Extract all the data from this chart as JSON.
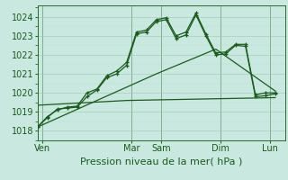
{
  "bg_color": "#c8e8e0",
  "grid_color_major": "#a0c8b8",
  "grid_color_minor": "#b8dcd0",
  "line_color": "#1a5c1a",
  "xlabel": "Pression niveau de la mer( hPa )",
  "xlabel_fontsize": 8,
  "tick_label_color": "#1a5c1a",
  "ylim": [
    1017.5,
    1024.6
  ],
  "yticks": [
    1018,
    1019,
    1020,
    1021,
    1022,
    1023,
    1024
  ],
  "x_day_labels": [
    "Ven",
    "Mar",
    "Sam",
    "Dim",
    "Lun"
  ],
  "x_day_positions": [
    0.5,
    9.5,
    12.5,
    18.5,
    23.5
  ],
  "x_vlines": [
    0.5,
    9.5,
    12.5,
    18.5,
    23.5
  ],
  "xlim": [
    0,
    25
  ],
  "series1_x": [
    0,
    1,
    2,
    3,
    4,
    5,
    6,
    7,
    8,
    9,
    10,
    11,
    12,
    13,
    14,
    15,
    16,
    17,
    18,
    19,
    20,
    21,
    22,
    23,
    24
  ],
  "series1_y": [
    1018.2,
    1018.7,
    1019.15,
    1019.2,
    1019.25,
    1019.8,
    1020.15,
    1020.8,
    1021.0,
    1021.45,
    1023.1,
    1023.2,
    1023.75,
    1023.85,
    1022.85,
    1023.05,
    1024.1,
    1023.0,
    1022.0,
    1022.05,
    1022.5,
    1022.45,
    1019.8,
    1019.85,
    1019.95
  ],
  "series2_x": [
    0,
    1,
    2,
    3,
    4,
    5,
    6,
    7,
    8,
    9,
    10,
    11,
    12,
    13,
    14,
    15,
    16,
    17,
    18,
    19,
    20,
    21,
    22,
    23,
    24
  ],
  "series2_y": [
    1018.2,
    1018.75,
    1019.1,
    1019.25,
    1019.3,
    1020.0,
    1020.2,
    1020.9,
    1021.15,
    1021.6,
    1023.2,
    1023.3,
    1023.85,
    1023.95,
    1023.0,
    1023.2,
    1024.2,
    1023.1,
    1022.1,
    1022.15,
    1022.55,
    1022.55,
    1019.9,
    1020.0,
    1020.0
  ],
  "series3_x": [
    0,
    12,
    18,
    24
  ],
  "series3_y": [
    1018.2,
    1021.0,
    1022.3,
    1020.1
  ],
  "series4_x": [
    0,
    9,
    24
  ],
  "series4_y": [
    1019.35,
    1019.6,
    1019.75
  ]
}
